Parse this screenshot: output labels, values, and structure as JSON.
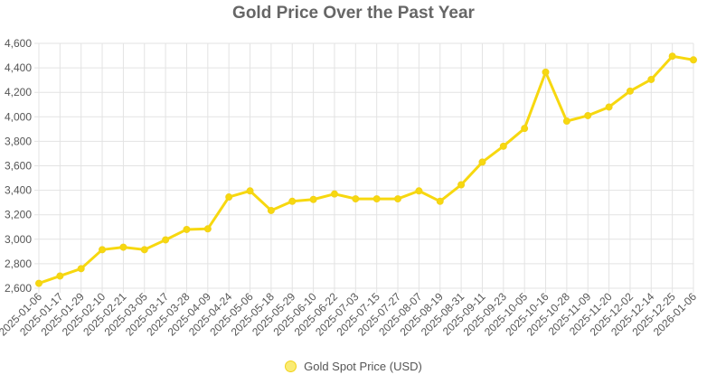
{
  "chart_data": {
    "type": "line",
    "title": "Gold Price Over the Past Year",
    "xlabel": "",
    "ylabel": "",
    "ylim": [
      2600,
      4600
    ],
    "y_ticks": [
      2600,
      2800,
      3000,
      3200,
      3400,
      3600,
      3800,
      4000,
      4200,
      4400,
      4600
    ],
    "y_tick_labels": [
      "2,600",
      "2,800",
      "3,000",
      "3,200",
      "3,400",
      "3,600",
      "3,800",
      "4,000",
      "4,200",
      "4,400",
      "4,600"
    ],
    "grid": true,
    "legend_position": "bottom",
    "categories": [
      "2025-01-06",
      "2025-01-17",
      "2025-01-29",
      "2025-02-10",
      "2025-02-21",
      "2025-03-05",
      "2025-03-17",
      "2025-03-28",
      "2025-04-09",
      "2025-04-24",
      "2025-05-06",
      "2025-05-18",
      "2025-05-29",
      "2025-06-10",
      "2025-06-22",
      "2025-07-03",
      "2025-07-15",
      "2025-07-27",
      "2025-08-07",
      "2025-08-19",
      "2025-08-31",
      "2025-09-11",
      "2025-09-23",
      "2025-10-05",
      "2025-10-16",
      "2025-10-28",
      "2025-11-09",
      "2025-11-20",
      "2025-12-02",
      "2025-12-14",
      "2025-12-25",
      "2026-01-06"
    ],
    "series": [
      {
        "name": "Gold Spot Price (USD)",
        "color": "#f7d80f",
        "values": [
          2640,
          2700,
          2760,
          2915,
          2935,
          2915,
          2995,
          3080,
          3085,
          3345,
          3395,
          3235,
          3310,
          3325,
          3370,
          3330,
          3330,
          3330,
          3395,
          3310,
          3445,
          3630,
          3760,
          3905,
          4365,
          3965,
          4010,
          4080,
          4210,
          4305,
          4495,
          4465
        ]
      }
    ]
  }
}
